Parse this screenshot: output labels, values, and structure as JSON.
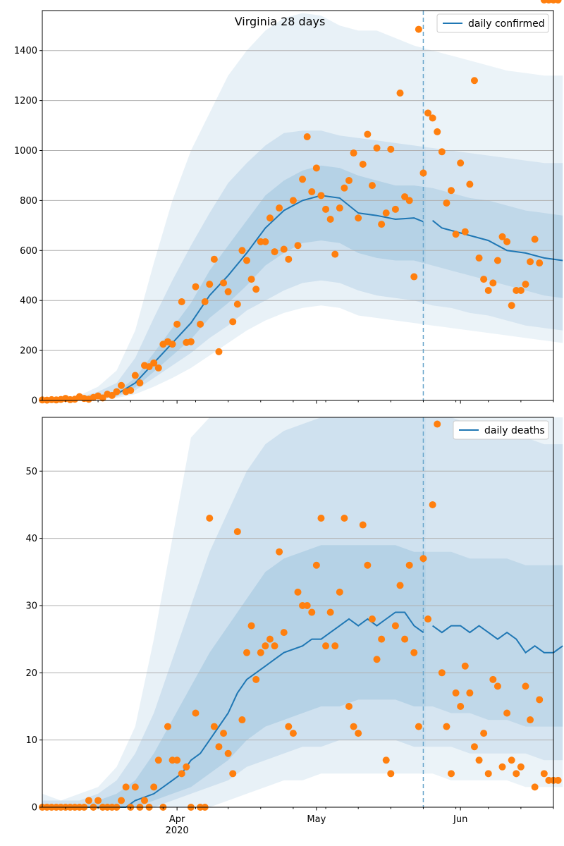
{
  "figure": {
    "title": "Virginia 28 days",
    "x_tick_labels": [
      "Apr",
      "May",
      "Jun"
    ],
    "x_year_label": "2020"
  },
  "colors": {
    "line": "#1f77b4",
    "points": "#ff7f0e",
    "band": "#1f77b4",
    "grid": "#b0b0b0",
    "divider": "#6aa6cc"
  },
  "chart_data": [
    {
      "type": "line",
      "legend": "daily confirmed",
      "legend_position": "top-right",
      "grid": "horizontal",
      "x_start": "2020-03-03",
      "x_end": "2020-06-21",
      "forecast_start": "2020-05-24",
      "ylim": [
        0,
        1560
      ],
      "yticks": [
        0,
        200,
        400,
        600,
        800,
        1000,
        1200,
        1400
      ],
      "line_days": [
        0,
        4,
        8,
        12,
        16,
        20,
        24,
        28,
        32,
        36,
        40,
        44,
        48,
        52,
        56,
        60,
        64,
        68,
        72,
        76,
        80,
        82,
        84,
        86,
        88,
        92,
        96,
        100,
        104,
        108,
        112
      ],
      "line_values": [
        0,
        2,
        5,
        12,
        25,
        70,
        150,
        230,
        310,
        420,
        500,
        590,
        690,
        760,
        800,
        820,
        810,
        750,
        740,
        725,
        730,
        715,
        720,
        690,
        680,
        660,
        640,
        600,
        590,
        570,
        560
      ],
      "bands": [
        {
          "days": [
            0,
            4,
            8,
            12,
            16,
            20,
            24,
            28,
            32,
            36,
            40,
            44,
            48,
            52,
            56,
            60,
            64,
            68,
            72,
            76,
            80,
            84,
            88,
            92,
            96,
            100,
            104,
            108,
            112
          ],
          "lower": [
            0,
            0,
            1,
            4,
            10,
            25,
            55,
            90,
            130,
            180,
            230,
            280,
            320,
            350,
            370,
            380,
            370,
            340,
            330,
            320,
            310,
            300,
            290,
            280,
            270,
            260,
            250,
            240,
            230
          ],
          "upper": [
            3,
            8,
            20,
            55,
            120,
            280,
            550,
            800,
            1000,
            1150,
            1300,
            1400,
            1480,
            1530,
            1550,
            1540,
            1500,
            1480,
            1480,
            1450,
            1420,
            1400,
            1380,
            1360,
            1340,
            1320,
            1310,
            1300,
            1300
          ]
        },
        {
          "days": [
            0,
            4,
            8,
            12,
            16,
            20,
            24,
            28,
            32,
            36,
            40,
            44,
            48,
            52,
            56,
            60,
            64,
            68,
            72,
            76,
            80,
            84,
            88,
            92,
            96,
            100,
            104,
            108,
            112
          ],
          "lower": [
            0,
            1,
            2,
            7,
            15,
            40,
            90,
            140,
            190,
            250,
            300,
            360,
            400,
            440,
            470,
            480,
            470,
            440,
            420,
            410,
            400,
            380,
            370,
            350,
            340,
            320,
            300,
            290,
            280
          ],
          "upper": [
            2,
            5,
            12,
            35,
            70,
            170,
            330,
            480,
            620,
            750,
            870,
            950,
            1020,
            1070,
            1080,
            1080,
            1060,
            1050,
            1040,
            1030,
            1020,
            1010,
            1000,
            990,
            980,
            970,
            960,
            950,
            950
          ]
        },
        {
          "days": [
            0,
            4,
            8,
            12,
            16,
            20,
            24,
            28,
            32,
            36,
            40,
            44,
            48,
            52,
            56,
            60,
            64,
            68,
            72,
            76,
            80,
            84,
            88,
            92,
            96,
            100,
            104,
            108,
            112
          ],
          "lower": [
            0,
            1,
            3,
            9,
            19,
            52,
            115,
            180,
            245,
            330,
            390,
            460,
            540,
            590,
            630,
            640,
            630,
            590,
            570,
            560,
            560,
            540,
            520,
            500,
            480,
            460,
            440,
            420,
            410
          ],
          "upper": [
            1,
            4,
            8,
            18,
            35,
            90,
            190,
            290,
            390,
            520,
            620,
            720,
            820,
            880,
            920,
            940,
            930,
            900,
            880,
            860,
            860,
            850,
            830,
            810,
            800,
            780,
            760,
            750,
            740
          ]
        }
      ],
      "point_days": [
        0,
        1,
        2,
        3,
        4,
        5,
        6,
        7,
        8,
        9,
        10,
        11,
        12,
        13,
        14,
        15,
        16,
        17,
        18,
        19,
        20,
        21,
        22,
        23,
        24,
        25,
        26,
        27,
        28,
        29,
        30,
        31,
        32,
        33,
        34,
        35,
        36,
        37,
        38,
        39,
        40,
        41,
        42,
        43,
        44,
        45,
        46,
        47,
        48,
        49,
        50,
        51,
        52,
        53,
        54,
        55,
        56,
        57,
        58,
        59,
        60,
        61,
        62,
        63,
        64,
        65,
        66,
        67,
        68,
        69,
        70,
        71,
        72,
        73,
        74,
        75,
        76,
        77,
        78,
        79,
        80,
        81,
        82,
        83,
        84,
        85,
        86,
        87,
        88,
        89,
        90,
        91,
        92,
        93,
        94,
        95,
        96,
        97,
        98,
        99,
        100,
        101,
        102,
        103,
        104,
        105,
        106,
        107,
        108,
        109,
        110,
        111
      ],
      "point_values": [
        2,
        1,
        3,
        2,
        4,
        8,
        3,
        5,
        15,
        8,
        5,
        12,
        18,
        10,
        25,
        20,
        35,
        60,
        35,
        40,
        100,
        70,
        140,
        135,
        150,
        130,
        225,
        235,
        225,
        305,
        395,
        232,
        235,
        455,
        305,
        395,
        465,
        565,
        195,
        470,
        435,
        315,
        385,
        600,
        560,
        485,
        445,
        635,
        635,
        730,
        595,
        770,
        605,
        565,
        800,
        620,
        885,
        1055,
        835,
        930,
        820,
        765,
        725,
        585,
        770,
        850,
        880,
        990,
        730,
        945,
        1065,
        860,
        1010,
        705,
        750,
        1005,
        765,
        1230,
        815,
        800,
        495,
        1485,
        910,
        1150,
        1130,
        1075,
        995,
        790,
        840,
        665,
        950,
        675,
        865,
        1280,
        570,
        485,
        440,
        470,
        560,
        655,
        635,
        380,
        440,
        440,
        465,
        555,
        645,
        550
      ]
    },
    {
      "type": "line",
      "legend": "daily deaths",
      "legend_position": "top-right",
      "grid": "horizontal",
      "x_start": "2020-03-03",
      "x_end": "2020-06-21",
      "forecast_start": "2020-05-24",
      "ylim": [
        0,
        58
      ],
      "yticks": [
        0,
        10,
        20,
        30,
        40,
        50
      ],
      "line_days": [
        0,
        18,
        20,
        24,
        28,
        30,
        32,
        34,
        36,
        38,
        40,
        42,
        44,
        46,
        48,
        50,
        52,
        56,
        58,
        60,
        62,
        64,
        66,
        68,
        70,
        72,
        74,
        76,
        78,
        80,
        82,
        84,
        86,
        88,
        90,
        92,
        94,
        96,
        98,
        100,
        102,
        104,
        106,
        108,
        110,
        112
      ],
      "line_values": [
        0,
        0,
        1,
        2,
        4,
        5,
        7,
        8,
        10,
        12,
        14,
        17,
        19,
        20,
        21,
        22,
        23,
        24,
        25,
        25,
        26,
        27,
        28,
        27,
        28,
        27,
        28,
        29,
        29,
        27,
        26,
        27,
        26,
        27,
        27,
        26,
        27,
        26,
        25,
        26,
        25,
        23,
        24,
        23,
        23,
        24
      ],
      "bands": [
        {
          "days": [
            0,
            4,
            8,
            12,
            16,
            20,
            24,
            28,
            32,
            36,
            40,
            44,
            48,
            52,
            56,
            60,
            64,
            68,
            72,
            76,
            80,
            84,
            88,
            92,
            96,
            100,
            104,
            108,
            112
          ],
          "lower": [
            0,
            0,
            0,
            0,
            0,
            0,
            0,
            0,
            0,
            0,
            1,
            2,
            3,
            4,
            4,
            5,
            5,
            5,
            5,
            5,
            5,
            5,
            4,
            4,
            4,
            4,
            3,
            3,
            3
          ],
          "upper": [
            2,
            1,
            2,
            3,
            6,
            12,
            25,
            40,
            55,
            58,
            58,
            58,
            58,
            58,
            58,
            58,
            58,
            58,
            58,
            58,
            58,
            58,
            58,
            58,
            58,
            58,
            58,
            58,
            58
          ]
        },
        {
          "days": [
            0,
            4,
            8,
            12,
            16,
            20,
            24,
            28,
            32,
            36,
            40,
            44,
            48,
            52,
            56,
            60,
            64,
            68,
            72,
            76,
            80,
            84,
            88,
            92,
            96,
            100,
            104,
            108,
            112
          ],
          "lower": [
            0,
            0,
            0,
            0,
            0,
            0,
            0,
            1,
            2,
            3,
            4,
            6,
            7,
            8,
            9,
            9,
            10,
            10,
            10,
            10,
            9,
            9,
            9,
            8,
            8,
            8,
            8,
            7,
            7
          ],
          "upper": [
            1,
            1,
            1,
            2,
            4,
            8,
            14,
            22,
            30,
            38,
            44,
            50,
            54,
            56,
            57,
            58,
            58,
            58,
            58,
            58,
            58,
            58,
            58,
            57,
            56,
            56,
            55,
            54,
            54
          ]
        },
        {
          "days": [
            0,
            4,
            8,
            12,
            16,
            20,
            24,
            28,
            32,
            36,
            40,
            44,
            48,
            52,
            56,
            60,
            64,
            68,
            72,
            76,
            80,
            84,
            88,
            92,
            96,
            100,
            104,
            108,
            112
          ],
          "lower": [
            0,
            0,
            0,
            0,
            0,
            0,
            1,
            2,
            3,
            5,
            7,
            10,
            12,
            13,
            14,
            15,
            15,
            16,
            16,
            16,
            15,
            15,
            14,
            14,
            13,
            13,
            12,
            12,
            12
          ],
          "upper": [
            0,
            0,
            0,
            1,
            2,
            4,
            8,
            13,
            18,
            23,
            27,
            31,
            35,
            37,
            38,
            39,
            39,
            39,
            39,
            39,
            38,
            38,
            38,
            37,
            37,
            37,
            36,
            36,
            36
          ]
        }
      ],
      "point_days": [
        0,
        1,
        2,
        3,
        4,
        5,
        6,
        7,
        8,
        9,
        10,
        11,
        12,
        13,
        14,
        15,
        16,
        17,
        18,
        19,
        20,
        21,
        22,
        23,
        24,
        25,
        26,
        27,
        28,
        29,
        30,
        31,
        32,
        33,
        34,
        35,
        36,
        37,
        38,
        39,
        40,
        41,
        42,
        43,
        44,
        45,
        46,
        47,
        48,
        49,
        50,
        51,
        52,
        53,
        54,
        55,
        56,
        57,
        58,
        59,
        60,
        61,
        62,
        63,
        64,
        65,
        66,
        67,
        68,
        69,
        70,
        71,
        72,
        73,
        74,
        75,
        76,
        77,
        78,
        79,
        80,
        81,
        82,
        83,
        84,
        85,
        86,
        87,
        88,
        89,
        90,
        91,
        92,
        93,
        94,
        95,
        96,
        97,
        98,
        99,
        100,
        101,
        102,
        103,
        104,
        105,
        106,
        107,
        108,
        109,
        110,
        111
      ],
      "point_values": [
        0,
        0,
        0,
        0,
        0,
        0,
        0,
        0,
        0,
        0,
        1,
        0,
        1,
        0,
        0,
        0,
        0,
        1,
        3,
        0,
        3,
        0,
        1,
        0,
        3,
        7,
        0,
        12,
        7,
        7,
        5,
        6,
        0,
        14,
        0,
        0,
        43,
        12,
        9,
        11,
        8,
        5,
        41,
        13,
        23,
        27,
        19,
        23,
        24,
        25,
        24,
        38,
        26,
        12,
        11,
        32,
        30,
        30,
        29,
        36,
        43,
        24,
        29,
        24,
        32,
        43,
        15,
        12,
        11,
        42,
        36,
        28,
        22,
        25,
        7,
        5,
        27,
        33,
        25,
        36,
        23,
        12,
        37,
        28,
        45,
        57,
        20,
        12,
        5,
        17,
        15,
        21,
        17,
        9,
        7,
        11,
        5,
        19,
        18,
        6,
        14,
        7,
        5,
        6,
        18,
        13,
        3,
        16,
        5,
        4,
        4,
        4
      ]
    }
  ]
}
